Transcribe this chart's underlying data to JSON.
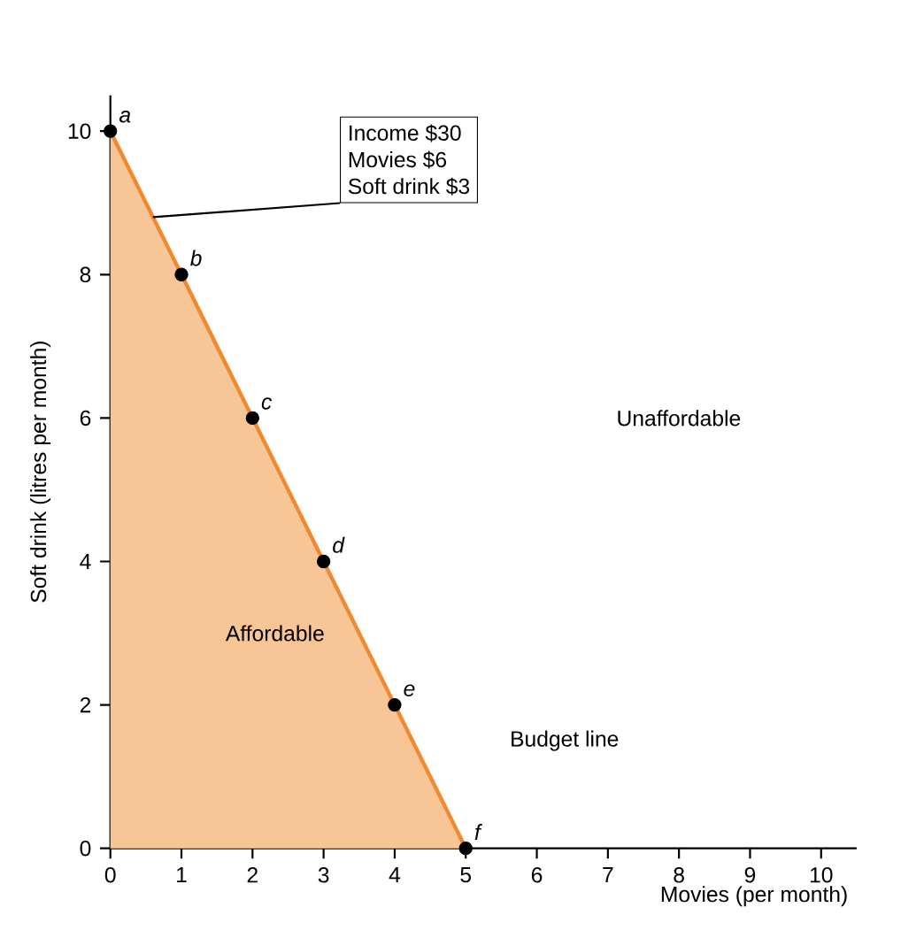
{
  "chart_data": {
    "type": "area",
    "xlabel": "Movies (per month)",
    "ylabel": "Soft drink (litres per month)",
    "x": [
      0,
      1,
      2,
      3,
      4,
      5
    ],
    "series": [
      {
        "color": "#f08a30",
        "values": [
          10,
          8,
          6,
          4,
          2,
          0
        ]
      },
      {
        "type": "scatter",
        "color": "#000000",
        "values": [
          10,
          8,
          6,
          4,
          2,
          0
        ]
      }
    ],
    "xlim": [
      0,
      10.5
    ],
    "ylim": [
      0,
      10.5
    ],
    "xticks": [
      0,
      1,
      2,
      3,
      4,
      5,
      6,
      7,
      8,
      9,
      10
    ],
    "yticks": [
      0,
      2,
      4,
      6,
      8,
      10
    ],
    "grid": false,
    "annotations": [
      {
        "text": "a",
        "x": 0,
        "y": 10
      },
      {
        "text": "b",
        "x": 1,
        "y": 8
      },
      {
        "text": "c",
        "x": 2,
        "y": 6
      },
      {
        "text": "d",
        "x": 3,
        "y": 4
      },
      {
        "text": "e",
        "x": 4,
        "y": 2
      },
      {
        "text": "f",
        "x": 5,
        "y": 0
      },
      "Unaffordable",
      "Affordable",
      "Budget line",
      "Income $30",
      "Movies $6",
      {
        "text": "Soft drink $3",
        "x": 0.6,
        "y": 8.8
      }
    ]
  }
}
